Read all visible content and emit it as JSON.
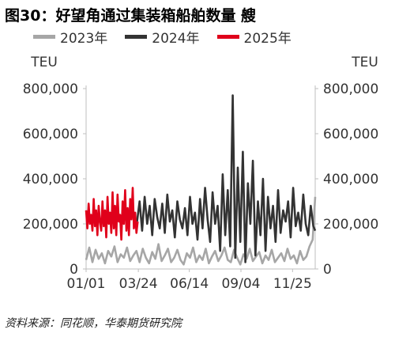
{
  "title": "图30：好望角通过集装箱船舶数量 艘",
  "source": "资料来源：同花顺，华泰期货研究院",
  "colors": {
    "s2023": "#a6a6a6",
    "s2024": "#333333",
    "s2025": "#e0001b"
  },
  "chart_data": {
    "type": "line",
    "title": "图30：好望角通过集装箱船舶数量 艘",
    "ylabel_left": "TEU",
    "ylabel_right": "TEU",
    "ylim": [
      0,
      800000
    ],
    "yticks": [
      0,
      200000,
      400000,
      600000,
      800000
    ],
    "ytick_labels": [
      "0",
      "200,000",
      "400,000",
      "600,000",
      "800,000"
    ],
    "x_domain": [
      1,
      365
    ],
    "xticks": [
      1,
      84,
      165,
      247,
      329
    ],
    "xtick_labels": [
      "01/01",
      "03/24",
      "06/14",
      "09/04",
      "11/25"
    ],
    "legend": [
      "2023年",
      "2024年",
      "2025年"
    ],
    "legend_position": "top",
    "grid": false,
    "series": [
      {
        "name": "2023年",
        "x": [
          1,
          6,
          11,
          16,
          21,
          26,
          31,
          36,
          41,
          46,
          51,
          56,
          61,
          66,
          71,
          76,
          81,
          86,
          91,
          96,
          101,
          106,
          111,
          116,
          121,
          126,
          131,
          136,
          141,
          146,
          151,
          156,
          161,
          166,
          171,
          176,
          181,
          186,
          191,
          196,
          201,
          206,
          211,
          216,
          221,
          226,
          231,
          236,
          241,
          246,
          251,
          256,
          261,
          266,
          271,
          276,
          281,
          286,
          291,
          296,
          301,
          306,
          311,
          316,
          321,
          326,
          331,
          336,
          341,
          346,
          351,
          356,
          361,
          365
        ],
        "values": [
          40000,
          95000,
          30000,
          85000,
          45000,
          70000,
          25000,
          80000,
          55000,
          100000,
          30000,
          65000,
          50000,
          95000,
          35000,
          60000,
          80000,
          30000,
          90000,
          50000,
          25000,
          75000,
          45000,
          110000,
          35000,
          60000,
          90000,
          30000,
          50000,
          85000,
          40000,
          20000,
          70000,
          50000,
          95000,
          30000,
          60000,
          40000,
          90000,
          25000,
          55000,
          80000,
          35000,
          60000,
          95000,
          40000,
          30000,
          85000,
          50000,
          20000,
          65000,
          45000,
          90000,
          35000,
          55000,
          75000,
          25000,
          60000,
          40000,
          85000,
          30000,
          50000,
          70000,
          35000,
          90000,
          45000,
          60000,
          25000,
          80000,
          40000,
          55000,
          100000,
          130000,
          320000
        ]
      },
      {
        "name": "2024年",
        "x": [
          82,
          86,
          90,
          94,
          98,
          102,
          106,
          110,
          114,
          118,
          122,
          126,
          130,
          134,
          138,
          142,
          146,
          150,
          154,
          158,
          162,
          166,
          170,
          174,
          178,
          182,
          186,
          190,
          194,
          198,
          202,
          206,
          210,
          214,
          218,
          222,
          226,
          230,
          234,
          238,
          242,
          246,
          250,
          254,
          258,
          262,
          266,
          270,
          274,
          278,
          282,
          286,
          290,
          294,
          298,
          302,
          306,
          310,
          314,
          318,
          322,
          326,
          330,
          334,
          338,
          342,
          346,
          350,
          354,
          358,
          362,
          365
        ],
        "values": [
          210000,
          300000,
          170000,
          320000,
          200000,
          280000,
          150000,
          310000,
          230000,
          180000,
          290000,
          160000,
          330000,
          210000,
          260000,
          140000,
          300000,
          220000,
          180000,
          270000,
          150000,
          320000,
          200000,
          250000,
          130000,
          310000,
          180000,
          360000,
          220000,
          120000,
          340000,
          200000,
          280000,
          80000,
          420000,
          150000,
          350000,
          100000,
          770000,
          50000,
          450000,
          120000,
          520000,
          30000,
          380000,
          200000,
          480000,
          60000,
          300000,
          150000,
          400000,
          80000,
          320000,
          180000,
          280000,
          120000,
          350000,
          160000,
          260000,
          210000,
          300000,
          140000,
          360000,
          190000,
          250000,
          170000,
          330000,
          200000,
          150000,
          280000,
          190000,
          170000
        ]
      },
      {
        "name": "2025年",
        "x": [
          1,
          3,
          5,
          7,
          9,
          11,
          13,
          15,
          17,
          19,
          21,
          23,
          25,
          27,
          29,
          31,
          33,
          35,
          37,
          39,
          41,
          43,
          45,
          47,
          49,
          51,
          53,
          55,
          57,
          59,
          61,
          63,
          65,
          67,
          69,
          71,
          73,
          75,
          77,
          79,
          81,
          83
        ],
        "values": [
          260000,
          180000,
          290000,
          200000,
          240000,
          170000,
          310000,
          190000,
          260000,
          150000,
          280000,
          210000,
          170000,
          300000,
          190000,
          260000,
          140000,
          320000,
          200000,
          250000,
          160000,
          340000,
          180000,
          280000,
          150000,
          330000,
          210000,
          240000,
          130000,
          300000,
          200000,
          350000,
          170000,
          270000,
          150000,
          310000,
          220000,
          360000,
          180000,
          250000,
          160000,
          210000
        ]
      }
    ]
  }
}
